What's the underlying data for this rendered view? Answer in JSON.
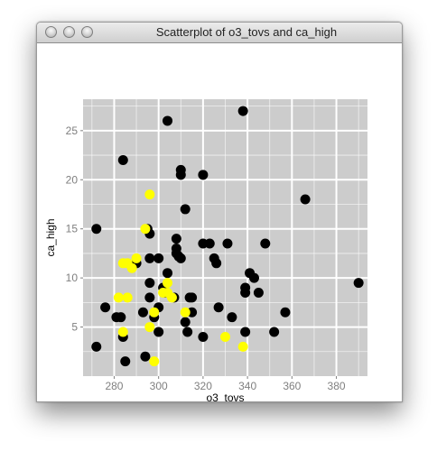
{
  "window": {
    "title": "Scatterplot of o3_tovs and ca_high"
  },
  "chart_data": {
    "type": "scatter",
    "xlabel": "o3_tovs",
    "ylabel": "ca_high",
    "xlim": [
      266,
      394
    ],
    "ylim": [
      0,
      28.2
    ],
    "xticks": [
      "280",
      "300",
      "320",
      "340",
      "360",
      "380"
    ],
    "yticks": [
      "5",
      "10",
      "15",
      "20",
      "25"
    ],
    "grid": true,
    "background_color": "#cccccc",
    "grid_color": "#ffffff",
    "series": [
      {
        "color": "#000000",
        "points": [
          [
            272,
            15
          ],
          [
            272,
            3
          ],
          [
            276,
            7
          ],
          [
            281,
            6
          ],
          [
            283,
            6
          ],
          [
            284,
            4
          ],
          [
            284,
            22
          ],
          [
            285,
            1.5
          ],
          [
            290,
            11.5
          ],
          [
            293,
            6.5
          ],
          [
            294,
            2
          ],
          [
            295,
            15
          ],
          [
            296,
            14.5
          ],
          [
            296,
            12
          ],
          [
            296,
            9.5
          ],
          [
            296,
            8
          ],
          [
            298,
            6
          ],
          [
            300,
            12
          ],
          [
            300,
            7
          ],
          [
            300,
            4.5
          ],
          [
            302,
            9
          ],
          [
            303,
            8.5
          ],
          [
            304,
            26
          ],
          [
            304,
            10.5
          ],
          [
            307,
            8
          ],
          [
            308,
            14
          ],
          [
            308,
            13
          ],
          [
            308,
            12.5
          ],
          [
            309,
            12.2
          ],
          [
            310,
            21
          ],
          [
            310,
            20.5
          ],
          [
            310,
            12
          ],
          [
            312,
            17
          ],
          [
            312,
            5.5
          ],
          [
            313,
            4.5
          ],
          [
            314,
            8
          ],
          [
            315,
            6.5
          ],
          [
            315,
            8
          ],
          [
            320,
            20.5
          ],
          [
            320,
            13.5
          ],
          [
            320,
            4
          ],
          [
            323,
            13.5
          ],
          [
            325,
            12
          ],
          [
            326,
            11.5
          ],
          [
            327,
            7
          ],
          [
            331,
            13.5
          ],
          [
            333,
            6
          ],
          [
            338,
            27
          ],
          [
            339,
            9
          ],
          [
            339,
            8.5
          ],
          [
            339,
            4.5
          ],
          [
            341,
            10.5
          ],
          [
            343,
            10
          ],
          [
            345,
            8.5
          ],
          [
            348,
            13.5
          ],
          [
            352,
            4.5
          ],
          [
            357,
            6.5
          ],
          [
            366,
            18
          ],
          [
            390,
            9.5
          ]
        ]
      },
      {
        "color": "#ffff00",
        "points": [
          [
            282,
            8
          ],
          [
            284,
            11.5
          ],
          [
            284,
            4.5
          ],
          [
            286,
            8
          ],
          [
            286,
            11.5
          ],
          [
            288,
            11
          ],
          [
            290,
            12
          ],
          [
            294,
            15
          ],
          [
            296,
            18.5
          ],
          [
            296,
            5
          ],
          [
            298,
            1.5
          ],
          [
            298,
            6.5
          ],
          [
            302,
            8.5
          ],
          [
            304,
            9.5
          ],
          [
            304,
            8.5
          ],
          [
            306,
            8
          ],
          [
            312,
            6.5
          ],
          [
            330,
            4
          ],
          [
            338,
            3
          ]
        ]
      }
    ]
  }
}
